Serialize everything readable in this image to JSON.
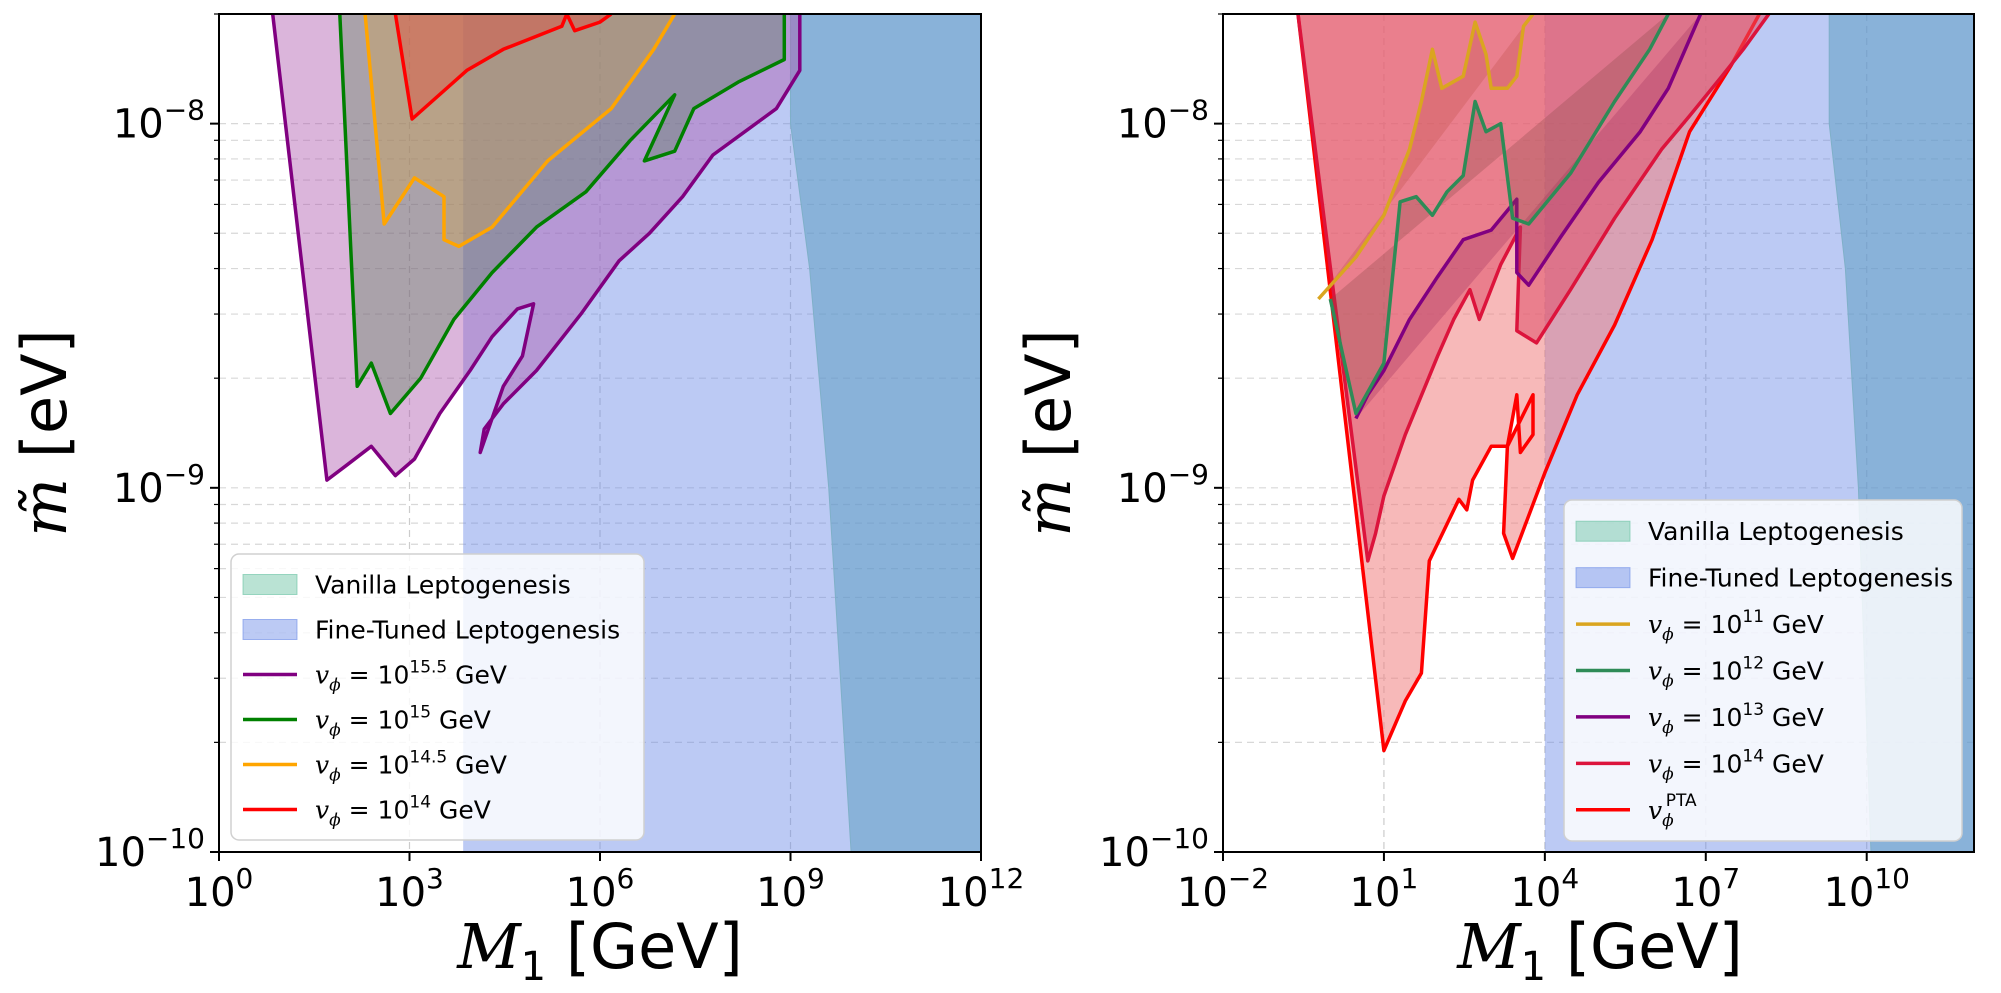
{
  "chart_data": [
    {
      "type": "area",
      "panel": "left",
      "xscale": "log",
      "yscale": "log",
      "xlim": [
        1,
        1000000000000.0
      ],
      "ylim": [
        1e-10,
        2e-08
      ],
      "xlabel": "M_1 [GeV]",
      "ylabel": "m̃ [eV]",
      "x_ticks": [
        {
          "base": "10",
          "exp": "0",
          "value": 1
        },
        {
          "base": "10",
          "exp": "3",
          "value": 1000.0
        },
        {
          "base": "10",
          "exp": "6",
          "value": 1000000.0
        },
        {
          "base": "10",
          "exp": "9",
          "value": 1000000000.0
        },
        {
          "base": "10",
          "exp": "12",
          "value": 1000000000000.0
        }
      ],
      "y_ticks": [
        {
          "base": "10",
          "exp": "−10",
          "value": 1e-10
        },
        {
          "base": "10",
          "exp": "−9",
          "value": 1e-09
        },
        {
          "base": "10",
          "exp": "−8",
          "value": 1e-08
        }
      ],
      "grid": true,
      "legend_position": "lower-left",
      "legend": [
        {
          "kind": "patch",
          "label": "Vanilla Leptogenesis",
          "color": "#66c2a0"
        },
        {
          "kind": "patch",
          "label": "Fine-Tuned Leptogenesis",
          "color": "#6b8ae6"
        },
        {
          "kind": "line",
          "math": "v",
          "sub": "ϕ",
          "eq": " = 10",
          "exp": "15.5",
          "unit": " GeV",
          "color": "#800080"
        },
        {
          "kind": "line",
          "math": "v",
          "sub": "ϕ",
          "eq": " = 10",
          "exp": "15",
          "unit": " GeV",
          "color": "#008000"
        },
        {
          "kind": "line",
          "math": "v",
          "sub": "ϕ",
          "eq": " = 10",
          "exp": "14.5",
          "unit": " GeV",
          "color": "#ffa500"
        },
        {
          "kind": "line",
          "math": "v",
          "sub": "ϕ",
          "eq": " = 10",
          "exp": "14",
          "unit": " GeV",
          "color": "#ff0000"
        }
      ],
      "bands": [
        {
          "name": "fine-tuned-leptogenesis",
          "color": "#6b8ae6",
          "opacity": 0.45,
          "x": [
            7000.0,
            1000000000000.0
          ],
          "y_bottom": 1e-10,
          "y_top": 2e-08
        },
        {
          "name": "excluded-region",
          "color": "#5f9ec2",
          "opacity": 0.55,
          "boundary": [
            [
              1000000000.0,
              2e-08
            ],
            [
              1000000000.0,
              1e-08
            ],
            [
              2000000000.0,
              4e-09
            ],
            [
              4000000000.0,
              1e-09
            ],
            [
              9000000000.0,
              1e-10
            ]
          ],
          "x_right": 1000000000000.0
        }
      ],
      "series": [
        {
          "name": "v_phi=10^15.5 GeV",
          "color": "#800080",
          "fill": "#b05ab0",
          "fill_opacity": 0.45,
          "points": [
            [
              7,
              2e-08
            ],
            [
              50,
              1.05e-09
            ],
            [
              100,
              1.15e-09
            ],
            [
              250,
              1.3e-09
            ],
            [
              600,
              1.08e-09
            ],
            [
              1200,
              1.2e-09
            ],
            [
              3000,
              1.6e-09
            ],
            [
              9000,
              2.1e-09
            ],
            [
              20000.0,
              2.6e-09
            ],
            [
              50000.0,
              3.1e-09
            ],
            [
              90000.0,
              3.2e-09
            ],
            [
              60000.0,
              2.3e-09
            ],
            [
              30000.0,
              1.9e-09
            ],
            [
              13000.0,
              1.25e-09
            ],
            [
              15000.0,
              1.45e-09
            ],
            [
              30000.0,
              1.7e-09
            ],
            [
              100000.0,
              2.1e-09
            ],
            [
              500000.0,
              3e-09
            ],
            [
              2000000.0,
              4.2e-09
            ],
            [
              6000000.0,
              5e-09
            ],
            [
              20000000.0,
              6.3e-09
            ],
            [
              60000000.0,
              8.2e-09
            ],
            [
              600000000.0,
              1.1e-08
            ],
            [
              1400000000.0,
              1.4e-08
            ],
            [
              1400000000.0,
              2e-08
            ]
          ]
        },
        {
          "name": "v_phi=10^15 GeV",
          "color": "#008000",
          "fill": "#4f7f4f",
          "fill_opacity": 0.35,
          "points": [
            [
              80,
              2e-08
            ],
            [
              150,
              1.9e-09
            ],
            [
              250,
              2.2e-09
            ],
            [
              500,
              1.6e-09
            ],
            [
              1500,
              2e-09
            ],
            [
              5000,
              2.9e-09
            ],
            [
              20000.0,
              3.9e-09
            ],
            [
              100000.0,
              5.2e-09
            ],
            [
              600000.0,
              6.5e-09
            ],
            [
              3000000.0,
              9e-09
            ],
            [
              15000000.0,
              1.2e-08
            ],
            [
              5000000.0,
              7.9e-09
            ],
            [
              15000000.0,
              8.4e-09
            ],
            [
              30000000.0,
              1.1e-08
            ],
            [
              150000000.0,
              1.3e-08
            ],
            [
              800000000.0,
              1.5e-08
            ],
            [
              800000000.0,
              2e-08
            ]
          ]
        },
        {
          "name": "v_phi=10^14.5 GeV",
          "color": "#ffa500",
          "fill": "#d4a24a",
          "fill_opacity": 0.35,
          "points": [
            [
              200,
              2e-08
            ],
            [
              400,
              5.3e-09
            ],
            [
              1200,
              7.1e-09
            ],
            [
              3500,
              6.3e-09
            ],
            [
              3500,
              4.8e-09
            ],
            [
              6000,
              4.6e-09
            ],
            [
              20000.0,
              5.2e-09
            ],
            [
              150000.0,
              7.9e-09
            ],
            [
              1500000.0,
              1.1e-08
            ],
            [
              7000000.0,
              1.6e-08
            ],
            [
              15000000.0,
              2e-08
            ]
          ]
        },
        {
          "name": "v_phi=10^14 GeV",
          "color": "#ff0000",
          "fill": "#e05040",
          "fill_opacity": 0.45,
          "points": [
            [
              600,
              2e-08
            ],
            [
              1100,
              1.03e-08
            ],
            [
              8000,
              1.4e-08
            ],
            [
              30000.0,
              1.6e-08
            ],
            [
              250000.0,
              1.85e-08
            ],
            [
              300000.0,
              2e-08
            ],
            [
              400000.0,
              1.8e-08
            ],
            [
              1000000.0,
              1.9e-08
            ],
            [
              1500000.0,
              2e-08
            ]
          ]
        }
      ]
    },
    {
      "type": "area",
      "panel": "right",
      "xscale": "log",
      "yscale": "log",
      "xlim": [
        0.01,
        1000000000000.0
      ],
      "ylim": [
        1e-10,
        2e-08
      ],
      "xlabel": "M_1 [GeV]",
      "ylabel": "m̃ [eV]",
      "x_ticks": [
        {
          "base": "10",
          "exp": "−2",
          "value": 0.01
        },
        {
          "base": "10",
          "exp": "1",
          "value": 10
        },
        {
          "base": "10",
          "exp": "4",
          "value": 10000.0
        },
        {
          "base": "10",
          "exp": "7",
          "value": 10000000.0
        },
        {
          "base": "10",
          "exp": "10",
          "value": 10000000000.0
        }
      ],
      "y_ticks": [
        {
          "base": "10",
          "exp": "−10",
          "value": 1e-10
        },
        {
          "base": "10",
          "exp": "−9",
          "value": 1e-09
        },
        {
          "base": "10",
          "exp": "−8",
          "value": 1e-08
        }
      ],
      "grid": true,
      "legend_position": "lower-right",
      "legend": [
        {
          "kind": "patch",
          "label": "Vanilla Leptogenesis",
          "color": "#66c2a0"
        },
        {
          "kind": "patch",
          "label": "Fine-Tuned Leptogenesis",
          "color": "#6b8ae6"
        },
        {
          "kind": "line",
          "math": "v",
          "sub": "ϕ",
          "eq": " = 10",
          "exp": "11",
          "unit": " GeV",
          "color": "#daa520"
        },
        {
          "kind": "line",
          "math": "v",
          "sub": "ϕ",
          "eq": " = 10",
          "exp": "12",
          "unit": " GeV",
          "color": "#2e8b57"
        },
        {
          "kind": "line",
          "math": "v",
          "sub": "ϕ",
          "eq": " = 10",
          "exp": "13",
          "unit": " GeV",
          "color": "#800080"
        },
        {
          "kind": "line",
          "math": "v",
          "sub": "ϕ",
          "eq": " = 10",
          "exp": "14",
          "unit": " GeV",
          "color": "#dc143c"
        },
        {
          "kind": "line",
          "math": "v",
          "sub": "ϕ",
          "eq": "",
          "exp": "PTA",
          "unit": "",
          "color": "#ff0000"
        }
      ],
      "bands": [
        {
          "name": "fine-tuned-leptogenesis",
          "color": "#6b8ae6",
          "opacity": 0.45,
          "x": [
            10000.0,
            1000000000000.0
          ],
          "y_bottom": 1e-10,
          "y_top": 2e-08
        },
        {
          "name": "excluded-region",
          "color": "#5f9ec2",
          "opacity": 0.55,
          "boundary": [
            [
              2000000000.0,
              2e-08
            ],
            [
              2000000000.0,
              1e-08
            ],
            [
              4000000000.0,
              4e-09
            ],
            [
              7000000000.0,
              1e-09
            ],
            [
              12000000000.0,
              1e-10
            ]
          ],
          "x_right": 1000000000000.0
        }
      ],
      "series": [
        {
          "name": "v_phi^PTA",
          "color": "#ff0000",
          "fill": "#f08080",
          "fill_opacity": 0.55,
          "points": [
            [
              0.25,
              2e-08
            ],
            [
              10,
              1.9e-10
            ],
            [
              25,
              2.6e-10
            ],
            [
              50,
              3.1e-10
            ],
            [
              70,
              6.3e-10
            ],
            [
              250,
              9.3e-10
            ],
            [
              350,
              8.7e-10
            ],
            [
              450,
              1.05e-09
            ],
            [
              1000,
              1.3e-09
            ],
            [
              2000,
              1.3e-09
            ],
            [
              3000,
              1.8e-09
            ],
            [
              3500,
              1.25e-09
            ],
            [
              6000,
              1.4e-09
            ],
            [
              6000,
              1.8e-09
            ],
            [
              2000,
              1.3e-09
            ],
            [
              1700,
              7.5e-10
            ],
            [
              2500,
              6.4e-10
            ],
            [
              10000.0,
              1.1e-09
            ],
            [
              40000.0,
              1.8e-09
            ],
            [
              200000.0,
              2.8e-09
            ],
            [
              1000000.0,
              4.8e-09
            ],
            [
              5000000.0,
              9.5e-09
            ],
            [
              30000000.0,
              1.45e-08
            ],
            [
              100000000.0,
              2e-08
            ]
          ]
        },
        {
          "name": "v_phi=10^14 GeV",
          "color": "#dc143c",
          "fill": "#e0506a",
          "fill_opacity": 0.55,
          "points": [
            [
              0.25,
              2e-08
            ],
            [
              5,
              6.3e-10
            ],
            [
              7,
              7.5e-10
            ],
            [
              10,
              9.5e-10
            ],
            [
              25,
              1.4e-09
            ],
            [
              100,
              2.3e-09
            ],
            [
              200,
              2.9e-09
            ],
            [
              400,
              3.5e-09
            ],
            [
              600,
              2.9e-09
            ],
            [
              1500,
              4.1e-09
            ],
            [
              3500,
              5.2e-09
            ],
            [
              3000,
              2.7e-09
            ],
            [
              7000,
              2.5e-09
            ],
            [
              30000.0,
              3.5e-09
            ],
            [
              200000.0,
              5.5e-09
            ],
            [
              1500000.0,
              8.5e-09
            ],
            [
              5000000.0,
              1.05e-08
            ],
            [
              20000000.0,
              1.35e-08
            ],
            [
              50000000.0,
              1.6e-08
            ],
            [
              150000000.0,
              2e-08
            ]
          ]
        },
        {
          "name": "v_phi=10^13 GeV",
          "color": "#800080",
          "fill": "#b0406a",
          "fill_opacity": 0.4,
          "points": [
            [
              3,
              1.55e-09
            ],
            [
              5,
              1.8e-09
            ],
            [
              10,
              2.1e-09
            ],
            [
              30,
              2.9e-09
            ],
            [
              100,
              3.8e-09
            ],
            [
              300,
              4.8e-09
            ],
            [
              1000,
              5.1e-09
            ],
            [
              3000,
              6.2e-09
            ],
            [
              3000,
              3.9e-09
            ],
            [
              5000,
              3.6e-09
            ],
            [
              20000.0,
              4.9e-09
            ],
            [
              100000.0,
              6.9e-09
            ],
            [
              600000.0,
              9.5e-09
            ],
            [
              2000000.0,
              1.25e-08
            ],
            [
              8000000.0,
              2e-08
            ]
          ]
        },
        {
          "name": "v_phi=10^12 GeV",
          "color": "#2e8b57",
          "fill": "#8b4a4a",
          "fill_opacity": 0.3,
          "points": [
            [
              1,
              3.3e-09
            ],
            [
              3,
              1.6e-09
            ],
            [
              10,
              2.2e-09
            ],
            [
              20,
              6.1e-09
            ],
            [
              40,
              6.3e-09
            ],
            [
              80,
              5.6e-09
            ],
            [
              150,
              6.5e-09
            ],
            [
              300,
              7.2e-09
            ],
            [
              500,
              1.15e-08
            ],
            [
              800,
              9.5e-09
            ],
            [
              1500,
              1e-08
            ],
            [
              2500,
              5.5e-09
            ],
            [
              5000,
              5.3e-09
            ],
            [
              30000.0,
              7.3e-09
            ],
            [
              200000.0,
              1.15e-08
            ],
            [
              900000.0,
              1.6e-08
            ],
            [
              2000000.0,
              2e-08
            ]
          ]
        },
        {
          "name": "v_phi=10^11 GeV",
          "color": "#daa520",
          "fill": "#c0504a",
          "fill_opacity": 0.3,
          "points": [
            [
              0.6,
              3.3e-09
            ],
            [
              3,
              4.3e-09
            ],
            [
              10,
              5.6e-09
            ],
            [
              30,
              8.5e-09
            ],
            [
              50,
              1.15e-08
            ],
            [
              80,
              1.6e-08
            ],
            [
              120,
              1.25e-08
            ],
            [
              300,
              1.35e-08
            ],
            [
              500,
              1.9e-08
            ],
            [
              800,
              1.55e-08
            ],
            [
              1000,
              1.25e-08
            ],
            [
              2000,
              1.25e-08
            ],
            [
              3000,
              1.35e-08
            ],
            [
              4000,
              1.85e-08
            ],
            [
              6000,
              2e-08
            ]
          ]
        }
      ]
    }
  ]
}
